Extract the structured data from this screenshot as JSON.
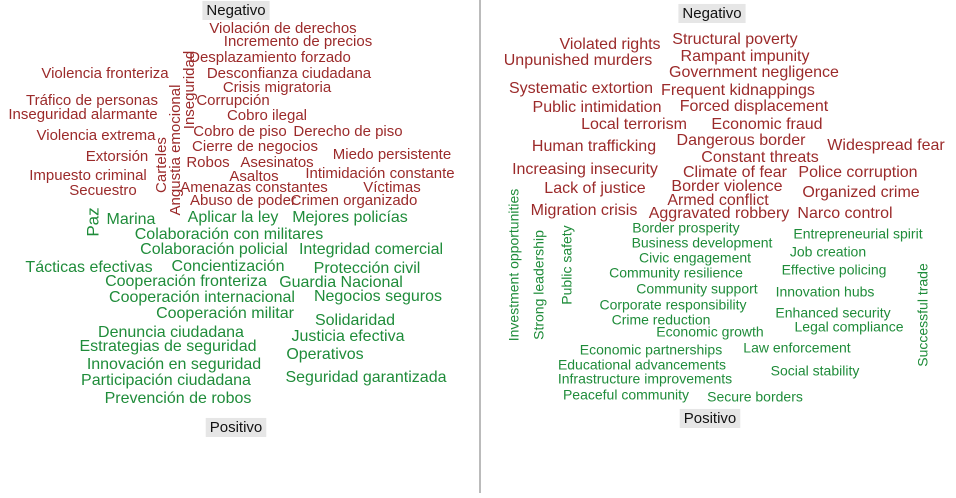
{
  "panels": [
    {
      "top_label": "Negativo",
      "bottom_label": "Positivo",
      "negative_words": [
        "Violación de derechos",
        "Incremento de precios",
        "Desplazamiento forzado",
        "Violencia fronteriza",
        "Desconfianza ciudadana",
        "Crisis migratoria",
        "Tráfico de personas",
        "Corrupción",
        "Inseguridad alarmante",
        "Cobro ilegal",
        "Violencia extrema",
        "Cobro de piso",
        "Derecho de piso",
        "Cierre de negocios",
        "Extorsión",
        "Robos",
        "Asesinatos",
        "Miedo persistente",
        "Impuesto criminal",
        "Asaltos",
        "Intimidación constante",
        "Secuestro",
        "Amenazas constantes",
        "Víctimas",
        "Abuso de poder",
        "Crimen organizado",
        "Inseguridad",
        "Angustia emocional",
        "Carteles"
      ],
      "positive_words": [
        "Paz",
        "Marina",
        "Aplicar la ley",
        "Mejores policías",
        "Colaboración con militares",
        "Colaboración policial",
        "Integridad comercial",
        "Tácticas efectivas",
        "Concientización",
        "Protección civil",
        "Cooperación fronteriza",
        "Guardia Nacional",
        "Cooperación internacional",
        "Negocios seguros",
        "Cooperación militar",
        "Solidaridad",
        "Denuncia ciudadana",
        "Justicia efectiva",
        "Estrategias de seguridad",
        "Operativos",
        "Innovación en seguridad",
        "Seguridad garantizada",
        "Participación ciudadana",
        "Prevención de robos"
      ]
    },
    {
      "top_label": "Negativo",
      "bottom_label": "Positivo",
      "negative_words": [
        "Structural poverty",
        "Violated rights",
        "Rampant impunity",
        "Unpunished murders",
        "Government negligence",
        "Systematic extortion",
        "Frequent kidnappings",
        "Public intimidation",
        "Forced displacement",
        "Local terrorism",
        "Economic fraud",
        "Dangerous border",
        "Human trafficking",
        "Widespread fear",
        "Constant threats",
        "Increasing insecurity",
        "Climate of fear",
        "Police corruption",
        "Lack of justice",
        "Border violence",
        "Organized crime",
        "Armed conflict",
        "Migration crisis",
        "Aggravated robbery",
        "Narco control"
      ],
      "positive_words": [
        "Investment opportunities",
        "Strong leadership",
        "Public safety",
        "Successful trade",
        "Border prosperity",
        "Entrepreneurial spirit",
        "Business development",
        "Civic engagement",
        "Job creation",
        "Community resilience",
        "Effective policing",
        "Community support",
        "Innovation hubs",
        "Corporate responsibility",
        "Enhanced security",
        "Crime reduction",
        "Economic growth",
        "Legal compliance",
        "Economic partnerships",
        "Law enforcement",
        "Educational advancements",
        "Social stability",
        "Infrastructure improvements",
        "Peaceful community",
        "Secure borders"
      ]
    }
  ]
}
